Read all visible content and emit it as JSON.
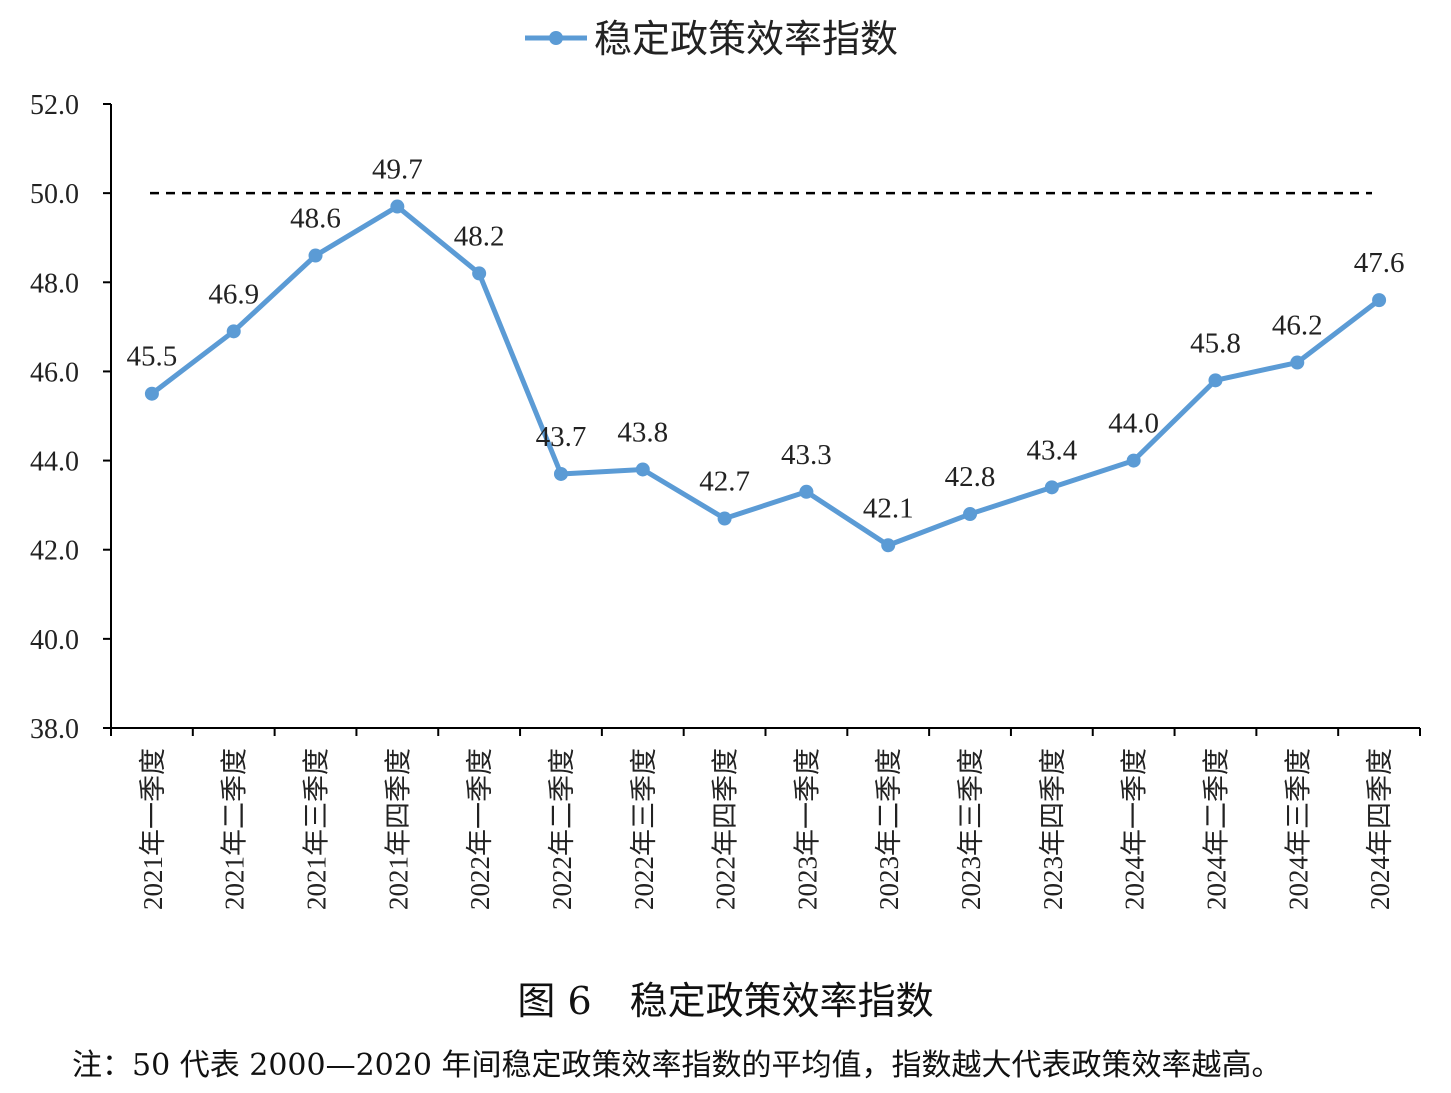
{
  "chart_data": {
    "type": "line",
    "title": "",
    "legend": {
      "label": "稳定政策效率指数",
      "placement": "top"
    },
    "categories": [
      "2021年一季度",
      "2021年二季度",
      "2021年三季度",
      "2021年四季度",
      "2022年一季度",
      "2022年二季度",
      "2022年三季度",
      "2022年四季度",
      "2023年一季度",
      "2023年二季度",
      "2023年三季度",
      "2023年四季度",
      "2024年一季度",
      "2024年二季度",
      "2024年三季度",
      "2024年四季度"
    ],
    "series": [
      {
        "name": "稳定政策效率指数",
        "values": [
          45.5,
          46.9,
          48.6,
          49.7,
          48.2,
          43.7,
          43.8,
          42.7,
          43.3,
          42.1,
          42.8,
          43.4,
          44.0,
          45.8,
          46.2,
          47.6
        ],
        "color": "#5b9bd5"
      }
    ],
    "reference_line": {
      "value": 50.0,
      "style": "dashed",
      "color": "#000000"
    },
    "ylim": [
      38.0,
      52.0
    ],
    "yticks": [
      "38.0",
      "40.0",
      "42.0",
      "44.0",
      "46.0",
      "48.0",
      "50.0",
      "52.0"
    ],
    "grid": false,
    "xlabel": "",
    "ylabel": ""
  },
  "figure": {
    "caption": "图 6　稳定政策效率指数",
    "note": "注：50 代表 2000—2020 年间稳定政策效率指数的平均值，指数越大代表政策效率越高。"
  }
}
